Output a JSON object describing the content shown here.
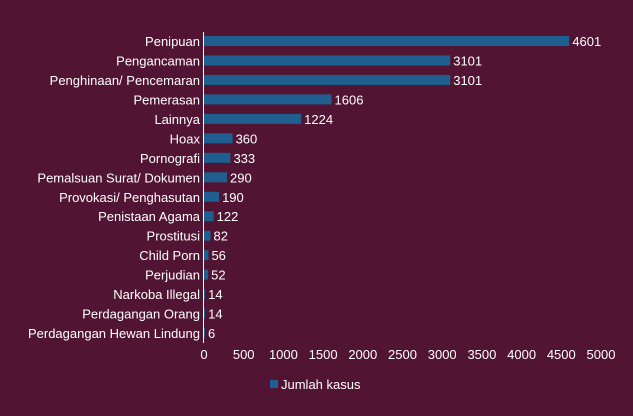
{
  "colors": {
    "background": "#521433",
    "bar": "#1f5f8f",
    "axis_line": "#ffffff",
    "text": "#ffffff"
  },
  "chart_data": {
    "type": "bar",
    "orientation": "horizontal",
    "categories": [
      "Penipuan",
      "Pengancaman",
      "Penghinaan/ Pencemaran",
      "Pemerasan",
      "Lainnya",
      "Hoax",
      "Pornografi",
      "Pemalsuan Surat/ Dokumen",
      "Provokasi/ Penghasutan",
      "Penistaan Agama",
      "Prostitusi",
      "Child Porn",
      "Perjudian",
      "Narkoba Illegal",
      "Perdagangan Orang",
      "Perdagangan Hewan Lindung"
    ],
    "series": [
      {
        "name": "Jumlah kasus",
        "values": [
          4601,
          3101,
          3101,
          1606,
          1224,
          360,
          333,
          290,
          190,
          122,
          82,
          56,
          52,
          14,
          14,
          6
        ]
      }
    ],
    "xlim": [
      0,
      5000
    ],
    "xticks": [
      0,
      500,
      1000,
      1500,
      2000,
      2500,
      3000,
      3500,
      4000,
      4500,
      5000
    ],
    "data_labels": true,
    "grid": false,
    "legend": {
      "position": "bottom",
      "entries": [
        "Jumlah kasus"
      ]
    }
  }
}
